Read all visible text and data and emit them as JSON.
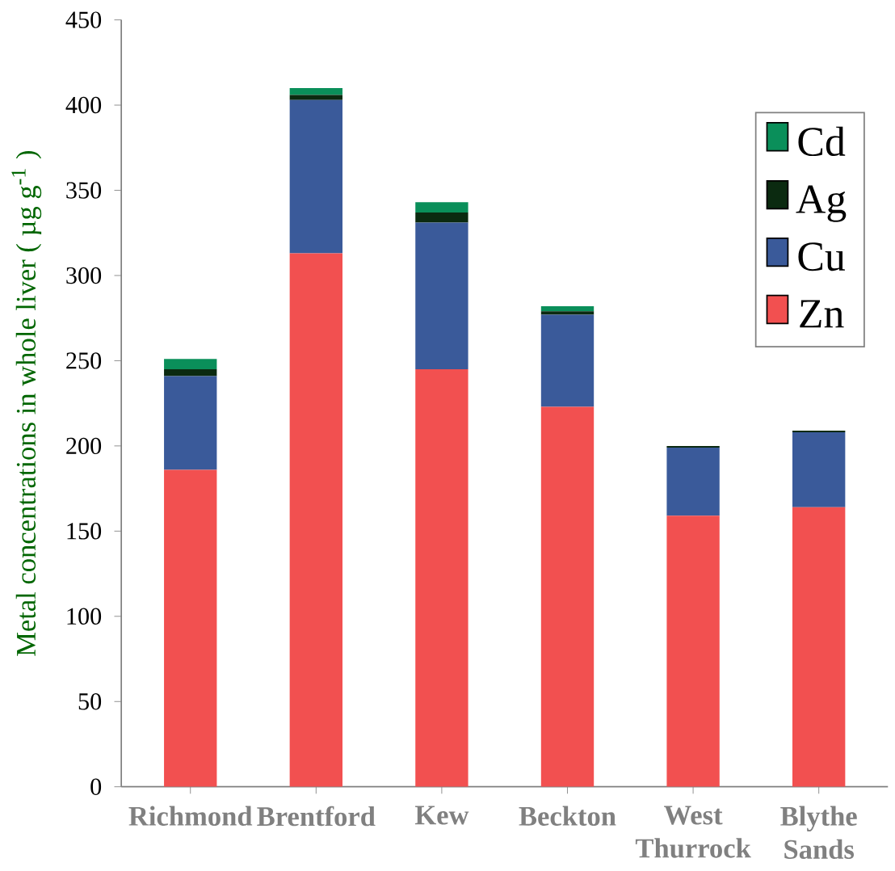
{
  "chart_data": {
    "type": "bar",
    "stacked": true,
    "ylabel": "Metal concentrations in whole liver ( µg g$^{-1}$ )",
    "categories": [
      "Richmond",
      "Brentford",
      "Kew",
      "Beckton",
      "West Thurrock",
      "Blythe Sands"
    ],
    "series": [
      {
        "name": "Zn",
        "color": "#f25050",
        "values": [
          186,
          313,
          245,
          223,
          159,
          164
        ]
      },
      {
        "name": "Cu",
        "color": "#3a5a9a",
        "values": [
          55,
          90,
          86,
          54,
          40,
          44
        ]
      },
      {
        "name": "Ag",
        "color": "#0b2a10",
        "values": [
          4,
          3,
          6,
          2,
          1,
          1
        ]
      },
      {
        "name": "Cd",
        "color": "#0a8f5a",
        "values": [
          6,
          4,
          6,
          3,
          0,
          0
        ]
      }
    ],
    "ylim": [
      0,
      450
    ],
    "yticks": [
      0,
      50,
      100,
      150,
      200,
      250,
      300,
      350,
      400,
      450
    ],
    "legend": "top right"
  }
}
